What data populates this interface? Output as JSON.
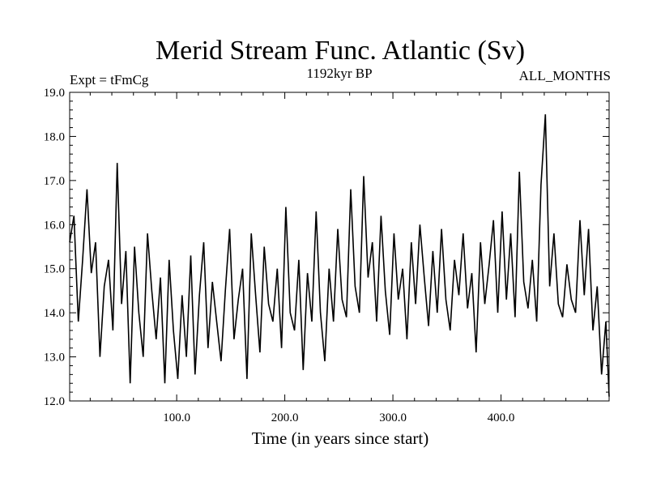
{
  "chart_data": {
    "type": "line",
    "title": "Merid Stream Func. Atlantic (Sv)",
    "subtitle": "1192kyr BP",
    "left_label": "Expt = tFmCg",
    "right_label": "ALL_MONTHS",
    "xlabel": "Time (in years since start)",
    "ylabel": "",
    "xlim": [
      1,
      500
    ],
    "ylim": [
      12.0,
      19.0
    ],
    "xticks": [
      100.0,
      200.0,
      300.0,
      400.0
    ],
    "xtick_labels": [
      "100.0",
      "200.0",
      "300.0",
      "400.0"
    ],
    "yticks": [
      12.0,
      13.0,
      14.0,
      15.0,
      16.0,
      17.0,
      18.0,
      19.0
    ],
    "ytick_labels": [
      "12.0",
      "13.0",
      "14.0",
      "15.0",
      "16.0",
      "17.0",
      "18.0",
      "19.0"
    ],
    "grid": false,
    "series": [
      {
        "name": "Merid Stream Func. Atlantic",
        "x": [
          1,
          5,
          9,
          13,
          17,
          21,
          25,
          29,
          33,
          37,
          41,
          45,
          49,
          53,
          57,
          61,
          65,
          69,
          73,
          77,
          81,
          85,
          89,
          93,
          97,
          101,
          105,
          109,
          113,
          117,
          121,
          125,
          129,
          133,
          137,
          141,
          145,
          149,
          153,
          157,
          161,
          165,
          169,
          173,
          177,
          181,
          185,
          189,
          193,
          197,
          201,
          205,
          209,
          213,
          217,
          221,
          225,
          229,
          233,
          237,
          241,
          245,
          249,
          253,
          257,
          261,
          265,
          269,
          273,
          277,
          281,
          285,
          289,
          293,
          297,
          301,
          305,
          309,
          313,
          317,
          321,
          325,
          329,
          333,
          337,
          341,
          345,
          349,
          353,
          357,
          361,
          365,
          369,
          373,
          377,
          381,
          385,
          389,
          393,
          397,
          401,
          405,
          409,
          413,
          417,
          421,
          425,
          429,
          433,
          437,
          441,
          445,
          449,
          453,
          457,
          461,
          465,
          469,
          473,
          477,
          481,
          485,
          489,
          493,
          497,
          500
        ],
        "values": [
          15.6,
          16.2,
          13.8,
          15.2,
          16.8,
          14.9,
          15.6,
          13.0,
          14.6,
          15.2,
          13.6,
          17.4,
          14.2,
          15.4,
          12.4,
          15.5,
          14.0,
          13.0,
          15.8,
          14.5,
          13.4,
          14.8,
          12.4,
          15.2,
          13.6,
          12.5,
          14.4,
          13.0,
          15.3,
          12.6,
          14.4,
          15.6,
          13.2,
          14.7,
          13.8,
          12.9,
          14.5,
          15.9,
          13.4,
          14.3,
          15.0,
          12.5,
          15.8,
          14.4,
          13.1,
          15.5,
          14.2,
          13.8,
          15.0,
          13.2,
          16.4,
          14.0,
          13.6,
          15.2,
          12.7,
          14.9,
          13.8,
          16.3,
          14.0,
          12.9,
          15.0,
          13.8,
          15.9,
          14.3,
          13.9,
          16.8,
          14.6,
          14.0,
          17.1,
          14.8,
          15.6,
          13.8,
          16.2,
          14.5,
          13.5,
          15.8,
          14.3,
          15.0,
          13.4,
          15.6,
          14.2,
          16.0,
          14.8,
          13.7,
          15.4,
          14.0,
          15.9,
          14.3,
          13.6,
          15.2,
          14.4,
          15.8,
          14.1,
          14.9,
          13.1,
          15.6,
          14.2,
          15.1,
          16.1,
          14.0,
          16.3,
          14.3,
          15.8,
          13.9,
          17.2,
          14.7,
          14.1,
          15.2,
          13.8,
          16.9,
          18.5,
          14.6,
          15.8,
          14.2,
          13.9,
          15.1,
          14.3,
          14.0,
          16.1,
          14.4,
          15.9,
          13.6,
          14.6,
          12.6,
          13.8,
          12.1
        ]
      }
    ]
  }
}
